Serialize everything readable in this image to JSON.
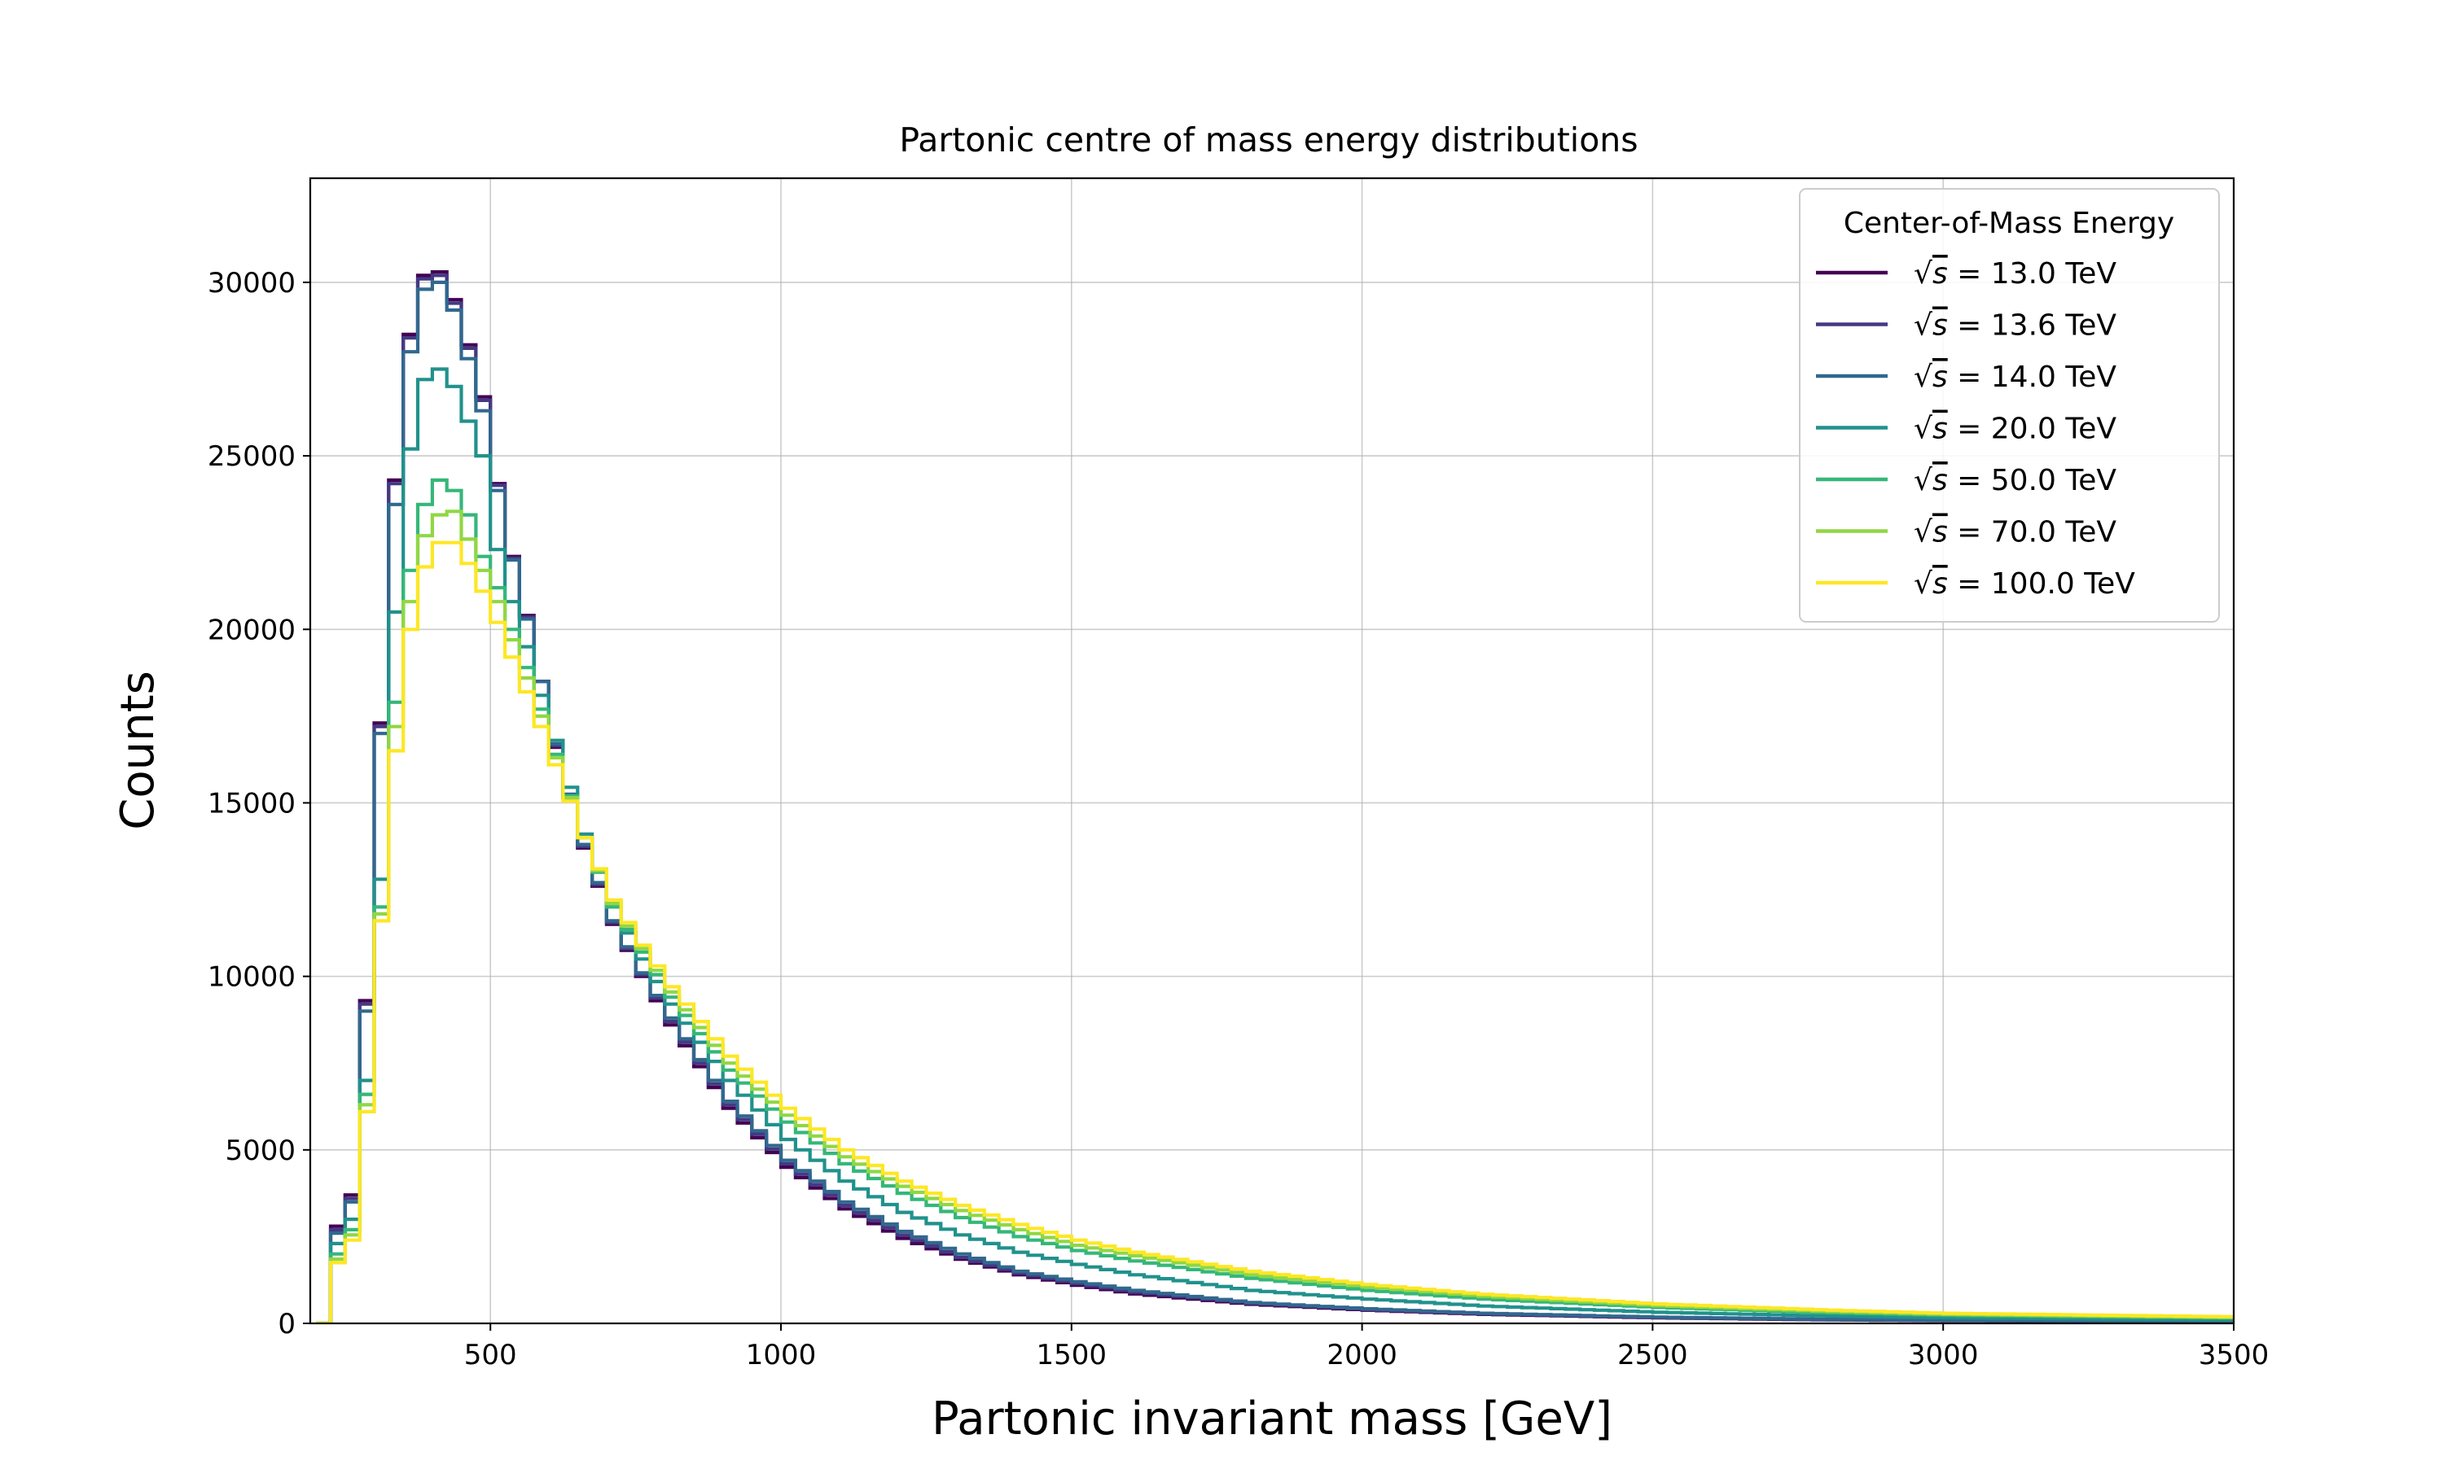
{
  "chart_data": {
    "type": "line",
    "drawstyle": "steps",
    "title": "Partonic centre of mass energy distributions",
    "xlabel": "Partonic invariant mass [GeV]",
    "ylabel": "Counts",
    "xlim": [
      190,
      3500
    ],
    "ylim": [
      0,
      33000
    ],
    "xticks": [
      500,
      1000,
      1500,
      2000,
      2500,
      3000,
      3500
    ],
    "yticks": [
      0,
      5000,
      10000,
      15000,
      20000,
      25000,
      30000
    ],
    "xtick_labels": [
      "500",
      "1000",
      "1500",
      "2000",
      "2500",
      "3000",
      "3500"
    ],
    "ytick_labels": [
      "0",
      "5000",
      "10000",
      "15000",
      "20000",
      "25000",
      "30000"
    ],
    "grid": true,
    "legend": {
      "title": "Center-of-Mass Energy",
      "position": "top-right",
      "entries": [
        {
          "prefix": "√",
          "var": "s",
          "rest": " = 13.0 TeV",
          "color": "#440154"
        },
        {
          "prefix": "√",
          "var": "s",
          "rest": " = 13.6 TeV",
          "color": "#443983"
        },
        {
          "prefix": "√",
          "var": "s",
          "rest": " = 14.0 TeV",
          "color": "#31688e"
        },
        {
          "prefix": "√",
          "var": "s",
          "rest": " = 20.0 TeV",
          "color": "#21918c"
        },
        {
          "prefix": "√",
          "var": "s",
          "rest": " = 50.0 TeV",
          "color": "#35b779"
        },
        {
          "prefix": "√",
          "var": "s",
          "rest": " = 70.0 TeV",
          "color": "#90d743"
        },
        {
          "prefix": "√",
          "var": "s",
          "rest": " = 100.0 TeV",
          "color": "#fde725"
        }
      ]
    },
    "series": [
      {
        "energy_tev": 13.0,
        "color": "#440154",
        "anchors_x": [
          200,
          225,
          250,
          275,
          300,
          325,
          350,
          375,
          400,
          425,
          450,
          475,
          500,
          525,
          550,
          575,
          600,
          650,
          700,
          750,
          800,
          900,
          1000,
          1100,
          1200,
          1300,
          1400,
          1500,
          1600,
          1800,
          2000,
          2200,
          2500,
          2800,
          3000,
          3500
        ],
        "anchors_y": [
          0,
          2800,
          3700,
          9300,
          17300,
          24300,
          28500,
          30200,
          30300,
          29500,
          28200,
          26700,
          24200,
          22100,
          20400,
          18500,
          16600,
          13700,
          11500,
          10000,
          8600,
          6200,
          4500,
          3300,
          2450,
          1850,
          1400,
          1100,
          850,
          550,
          380,
          260,
          160,
          100,
          80,
          50
        ]
      },
      {
        "energy_tev": 13.6,
        "color": "#443983",
        "anchors_x": [
          200,
          225,
          250,
          275,
          300,
          325,
          350,
          375,
          400,
          425,
          450,
          475,
          500,
          525,
          550,
          575,
          600,
          650,
          700,
          750,
          800,
          900,
          1000,
          1100,
          1200,
          1300,
          1400,
          1500,
          1600,
          1800,
          2000,
          2200,
          2500,
          2800,
          3000,
          3500
        ],
        "anchors_y": [
          0,
          2700,
          3600,
          9200,
          17200,
          24200,
          28400,
          30100,
          30200,
          29400,
          28100,
          26600,
          24150,
          22050,
          20350,
          18500,
          16650,
          13750,
          11550,
          10050,
          8700,
          6300,
          4600,
          3400,
          2550,
          1900,
          1450,
          1150,
          900,
          580,
          400,
          275,
          170,
          110,
          85,
          55
        ]
      },
      {
        "energy_tev": 14.0,
        "color": "#31688e",
        "anchors_x": [
          200,
          225,
          250,
          275,
          300,
          325,
          350,
          375,
          400,
          425,
          450,
          475,
          500,
          525,
          550,
          575,
          600,
          650,
          700,
          750,
          800,
          900,
          1000,
          1100,
          1200,
          1300,
          1400,
          1500,
          1600,
          1800,
          2000,
          2200,
          2500,
          2800,
          3000,
          3500
        ],
        "anchors_y": [
          0,
          2600,
          3500,
          9000,
          17000,
          23600,
          28000,
          29800,
          30000,
          29200,
          27800,
          26300,
          24000,
          22000,
          20300,
          18500,
          16700,
          13800,
          11600,
          10100,
          8800,
          6400,
          4700,
          3500,
          2650,
          2000,
          1500,
          1200,
          950,
          600,
          420,
          290,
          180,
          115,
          90,
          60
        ]
      },
      {
        "energy_tev": 20.0,
        "color": "#21918c",
        "anchors_x": [
          200,
          225,
          250,
          275,
          300,
          325,
          350,
          375,
          400,
          425,
          450,
          475,
          500,
          525,
          550,
          575,
          600,
          650,
          700,
          750,
          800,
          900,
          1000,
          1100,
          1200,
          1300,
          1400,
          1500,
          1600,
          1800,
          2000,
          2200,
          2500,
          2800,
          3000,
          3500
        ],
        "anchors_y": [
          0,
          2300,
          3000,
          7000,
          12800,
          20500,
          25200,
          27200,
          27500,
          27000,
          26000,
          25000,
          22300,
          20800,
          19500,
          18100,
          16800,
          14100,
          12000,
          10500,
          9200,
          7000,
          5300,
          4100,
          3200,
          2550,
          2050,
          1700,
          1400,
          950,
          700,
          500,
          320,
          210,
          160,
          100
        ]
      },
      {
        "energy_tev": 50.0,
        "color": "#35b779",
        "anchors_x": [
          200,
          225,
          250,
          275,
          300,
          325,
          350,
          375,
          400,
          425,
          450,
          475,
          500,
          525,
          550,
          575,
          600,
          650,
          700,
          750,
          800,
          900,
          1000,
          1100,
          1200,
          1300,
          1400,
          1500,
          1600,
          1800,
          2000,
          2200,
          2500,
          2800,
          3000,
          3500
        ],
        "anchors_y": [
          0,
          2000,
          2700,
          6600,
          12000,
          17900,
          21700,
          23600,
          24300,
          24000,
          23300,
          22100,
          21200,
          20000,
          18900,
          17700,
          16400,
          14000,
          12000,
          10700,
          9400,
          7300,
          5800,
          4600,
          3750,
          3050,
          2500,
          2100,
          1800,
          1300,
          950,
          700,
          460,
          300,
          230,
          150
        ]
      },
      {
        "energy_tev": 70.0,
        "color": "#90d743",
        "anchors_x": [
          200,
          225,
          250,
          275,
          300,
          325,
          350,
          375,
          400,
          425,
          450,
          475,
          500,
          525,
          550,
          575,
          600,
          650,
          700,
          750,
          800,
          900,
          1000,
          1100,
          1200,
          1300,
          1400,
          1500,
          1600,
          1800,
          2000,
          2200,
          2500,
          2800,
          3000,
          3500
        ],
        "anchors_y": [
          0,
          1850,
          2550,
          6300,
          11800,
          17200,
          20800,
          22700,
          23300,
          23400,
          22600,
          21700,
          20800,
          19700,
          18600,
          17500,
          16300,
          14000,
          12100,
          10800,
          9550,
          7500,
          6000,
          4800,
          3950,
          3250,
          2700,
          2250,
          1950,
          1400,
          1050,
          780,
          510,
          340,
          260,
          170
        ]
      },
      {
        "energy_tev": 100.0,
        "color": "#fde725",
        "anchors_x": [
          200,
          225,
          250,
          275,
          300,
          325,
          350,
          375,
          400,
          425,
          450,
          475,
          500,
          525,
          550,
          575,
          600,
          650,
          700,
          750,
          800,
          900,
          1000,
          1100,
          1200,
          1300,
          1400,
          1500,
          1600,
          1800,
          2000,
          2200,
          2500,
          2800,
          3000,
          3500
        ],
        "anchors_y": [
          0,
          1750,
          2400,
          6100,
          11600,
          16500,
          20000,
          21800,
          22500,
          22500,
          21900,
          21100,
          20200,
          19200,
          18200,
          17200,
          16100,
          14000,
          12200,
          10900,
          9700,
          7700,
          6200,
          5000,
          4100,
          3400,
          2850,
          2400,
          2050,
          1500,
          1120,
          840,
          560,
          380,
          290,
          190
        ]
      }
    ]
  }
}
